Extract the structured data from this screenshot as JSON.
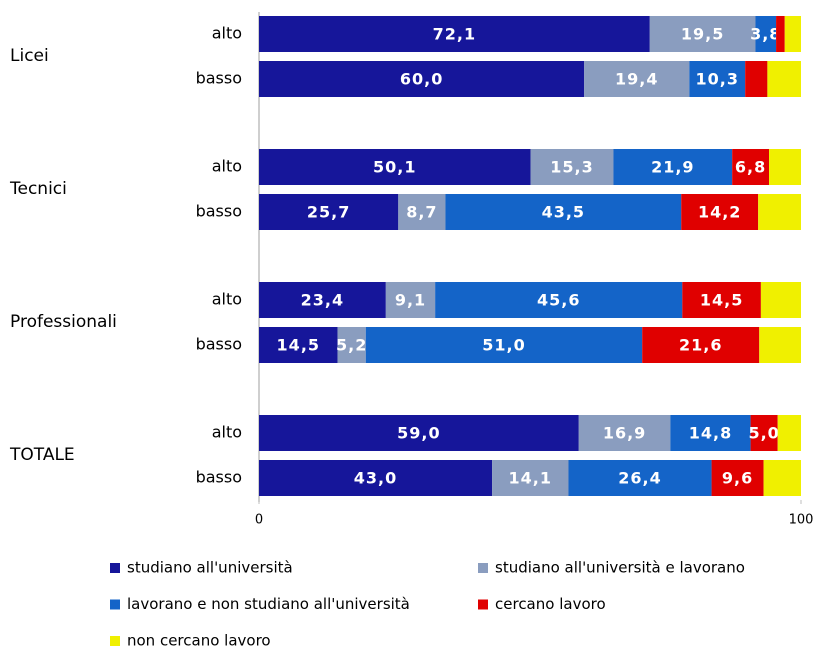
{
  "chart_data": {
    "type": "stacked_barh",
    "groups": [
      "Licei",
      "Tecnici",
      "Professionali",
      "TOTALE"
    ],
    "categories": [
      "alto",
      "basso",
      "alto",
      "basso",
      "alto",
      "basso",
      "alto",
      "basso"
    ],
    "series": [
      {
        "name": "studiano all'università",
        "color": "#16169a",
        "values": [
          72.1,
          60.0,
          50.1,
          25.7,
          23.4,
          14.5,
          59.0,
          43.0
        ],
        "value_labels": [
          "72,1",
          "60,0",
          "50,1",
          "25,7",
          "23,4",
          "14,5",
          "59,0",
          "43,0"
        ]
      },
      {
        "name": "studiano all'università e lavorano",
        "color": "#8a9dbf",
        "values": [
          19.5,
          19.4,
          15.3,
          8.7,
          9.1,
          5.2,
          16.9,
          14.1
        ],
        "value_labels": [
          "19,5",
          "19,4",
          "15,3",
          "8,7",
          "9,1",
          "5,2",
          "16,9",
          "14,1"
        ]
      },
      {
        "name": "lavorano e non studiano all'università",
        "color": "#1464c8",
        "values": [
          3.8,
          10.3,
          21.9,
          43.5,
          45.6,
          51.0,
          14.8,
          26.4
        ],
        "value_labels": [
          "3,8",
          "10,3",
          "21,9",
          "43,5",
          "45,6",
          "51,0",
          "14,8",
          "26,4"
        ]
      },
      {
        "name": "cercano lavoro",
        "color": "#e00000",
        "values": [
          1.6,
          4.1,
          6.8,
          14.2,
          14.5,
          21.6,
          5.0,
          9.6
        ],
        "value_labels": [
          null,
          null,
          "6,8",
          "14,2",
          "14,5",
          "21,6",
          "5,0",
          "9,6"
        ]
      },
      {
        "name": "non cercano lavoro",
        "color": "#f0f000",
        "values": [
          3.0,
          6.2,
          5.9,
          7.9,
          7.4,
          7.7,
          4.3,
          6.9
        ],
        "value_labels": [
          null,
          null,
          null,
          null,
          null,
          null,
          null,
          null
        ]
      }
    ],
    "xlim": [
      0,
      100
    ],
    "xticks": [
      0,
      100
    ],
    "grid": false
  }
}
